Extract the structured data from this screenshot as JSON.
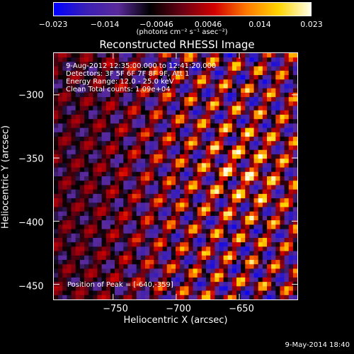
{
  "colorbar": {
    "tick_labels": [
      "−0.023",
      "−0.014",
      "−0.0046",
      "0.0046",
      "0.014",
      "0.023"
    ],
    "unit_label": "(photons cm⁻² s⁻¹ asec⁻²)",
    "range": [
      -0.023,
      0.023
    ],
    "colors": [
      "#0000ff",
      "#3a1fb6",
      "#5a2a9a",
      "#000000",
      "#6a0014",
      "#d20000",
      "#ff7a00",
      "#ffd500",
      "#ffffe8"
    ]
  },
  "plot": {
    "title": "Reconstructed RHESSI Image",
    "info_lines": [
      "9-Aug-2012 12:35:00.000 to 12:41:20.000",
      "Detectors: 3F 5F 6F 7F 8F 9F, Att 1",
      "Energy Range: 12.0 - 25.0 keV",
      "Clean    Total counts: 1.09e+04"
    ],
    "peak_label": "Position of Peak = [-640,-359]"
  },
  "chart_data": {
    "type": "heatmap",
    "title": "Reconstructed RHESSI Image",
    "xlabel": "Heliocentric X (arcsec)",
    "ylabel": "Heliocentric Y (arcsec)",
    "xlim": [
      -797,
      -604
    ],
    "ylim": [
      -462,
      -267
    ],
    "x_tick_labels": [
      "−750",
      "−700",
      "−650"
    ],
    "y_tick_labels": [
      "−300",
      "−350",
      "−400",
      "−450"
    ],
    "x_ticks": [
      -750,
      -700,
      -650
    ],
    "y_ticks": [
      -300,
      -350,
      -400,
      -450
    ],
    "value_range": [
      -0.023,
      0.023
    ],
    "peak_position": [
      -640,
      -359
    ],
    "grid": false
  },
  "footer": {
    "timestamp": "9-May-2014 18:40"
  }
}
